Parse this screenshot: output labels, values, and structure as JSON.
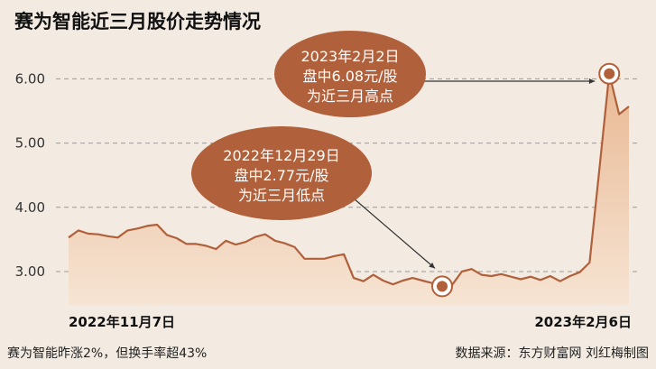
{
  "title": "赛为智能近三月股价走势情况",
  "footer_left": "赛为智能昨涨2%，但换手率超43%",
  "footer_right": "数据来源：东方财富网  刘红梅制图",
  "colors": {
    "line": "#b0603a",
    "area_top": "#e9b893",
    "area_bottom": "#f6e4d3",
    "bubble": "#b0603a",
    "bubble_text": "#ffffff",
    "grid": "#9a9a9a",
    "background": "#f3ebe2"
  },
  "chart_data": {
    "type": "area",
    "title": "赛为智能近三月股价走势情况",
    "xlabel": "",
    "ylabel": "",
    "ylim": [
      2.5,
      6.5
    ],
    "yticks": [
      "3.00",
      "4.00",
      "5.00",
      "6.00"
    ],
    "ytick_values": [
      3,
      4,
      5,
      6
    ],
    "x_labels": [
      "2022年11月7日",
      "2023年2月6日"
    ],
    "grid": "horizontal dashed",
    "series": [
      {
        "values": [
          3.53,
          3.64,
          3.59,
          3.58,
          3.55,
          3.53,
          3.64,
          3.67,
          3.71,
          3.73,
          3.57,
          3.52,
          3.43,
          3.43,
          3.4,
          3.35,
          3.48,
          3.42,
          3.46,
          3.54,
          3.58,
          3.48,
          3.44,
          3.38,
          3.2,
          3.2,
          3.2,
          3.24,
          3.27,
          2.9,
          2.85,
          2.95,
          2.86,
          2.8,
          2.86,
          2.9,
          2.86,
          2.82,
          2.77,
          2.79,
          3.0,
          3.04,
          2.95,
          2.93,
          2.96,
          2.92,
          2.88,
          2.92,
          2.87,
          2.93,
          2.85,
          2.93,
          2.99,
          3.14,
          4.6,
          6.08,
          5.45,
          5.57
        ]
      }
    ],
    "annotations": [
      {
        "index": 38,
        "value": 2.77,
        "lines": [
          "2022年12月29日",
          "盘中2.77元/股",
          "为近三月低点"
        ]
      },
      {
        "index": 55,
        "value": 6.08,
        "lines": [
          "2023年2月2日",
          "盘中6.08元/股",
          "为近三月高点"
        ]
      }
    ]
  }
}
